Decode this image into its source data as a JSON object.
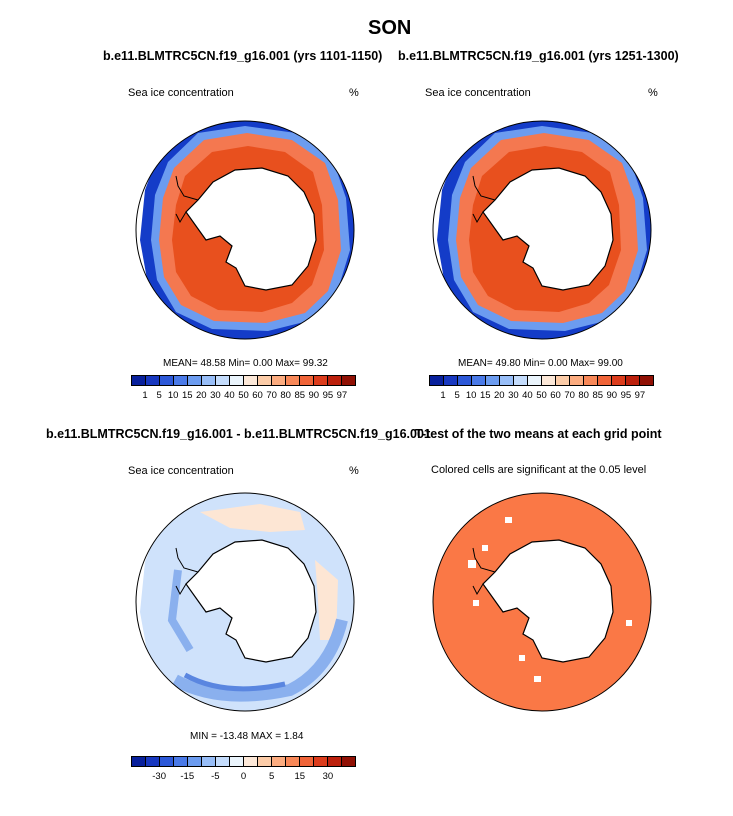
{
  "page": {
    "title": "SON"
  },
  "panels": [
    {
      "title": "b.e11.BLMTRC5CN.f19_g16.001 (yrs 1101-1150)",
      "left_label": "Sea ice concentration",
      "right_label": "%",
      "stats": "MEAN=  48.58  Min=   0.00  Max=  99.32"
    },
    {
      "title": "b.e11.BLMTRC5CN.f19_g16.001 (yrs 1251-1300)",
      "left_label": "Sea ice concentration",
      "right_label": "%",
      "stats": "MEAN=  49.80  Min=   0.00  Max=  99.00"
    },
    {
      "title": "b.e11.BLMTRC5CN.f19_g16.001 - b.e11.BLMTRC5CN.f19_g16.001",
      "left_label": "Sea ice concentration",
      "right_label": "%",
      "stats": "MIN = -13.48  MAX =   1.84"
    },
    {
      "title": "T-test of the two means at each grid point",
      "subtitle": "Colored cells are significant at the 0.05 level"
    }
  ],
  "colorbars": {
    "concentration": {
      "colors": [
        "#08209c",
        "#1838c0",
        "#2c58d8",
        "#4a7ae8",
        "#6c9cf0",
        "#98bef8",
        "#c4dcfc",
        "#eaf4fc",
        "#fce8d8",
        "#fccca8",
        "#fcac80",
        "#f88858",
        "#f06438",
        "#dc3c1c",
        "#bc200c",
        "#901004"
      ],
      "ticks": [
        "1",
        "5",
        "10",
        "15",
        "20",
        "30",
        "40",
        "50",
        "60",
        "70",
        "80",
        "85",
        "90",
        "95",
        "97"
      ]
    },
    "difference": {
      "colors": [
        "#08209c",
        "#1838c0",
        "#2c58d8",
        "#4a7ae8",
        "#6c9cf0",
        "#98bef8",
        "#c4dcfc",
        "#eaf4fc",
        "#fce8d8",
        "#fccca8",
        "#fcac80",
        "#f88858",
        "#f06438",
        "#dc3c1c",
        "#bc200c",
        "#901004"
      ],
      "ticks": [
        "-30",
        "-15",
        "-5",
        "0",
        "5",
        "15",
        "30"
      ]
    }
  },
  "colors": {
    "significant": "#fa7846",
    "ice_high": "#e8501e",
    "ice_mid": "#f47850",
    "ice_low": "#143cc8",
    "diff_light": "#cfe2fb",
    "diff_pos": "#fde6d4",
    "diff_mid": "#8ab0ee",
    "diff_strong": "#5a86e0"
  }
}
